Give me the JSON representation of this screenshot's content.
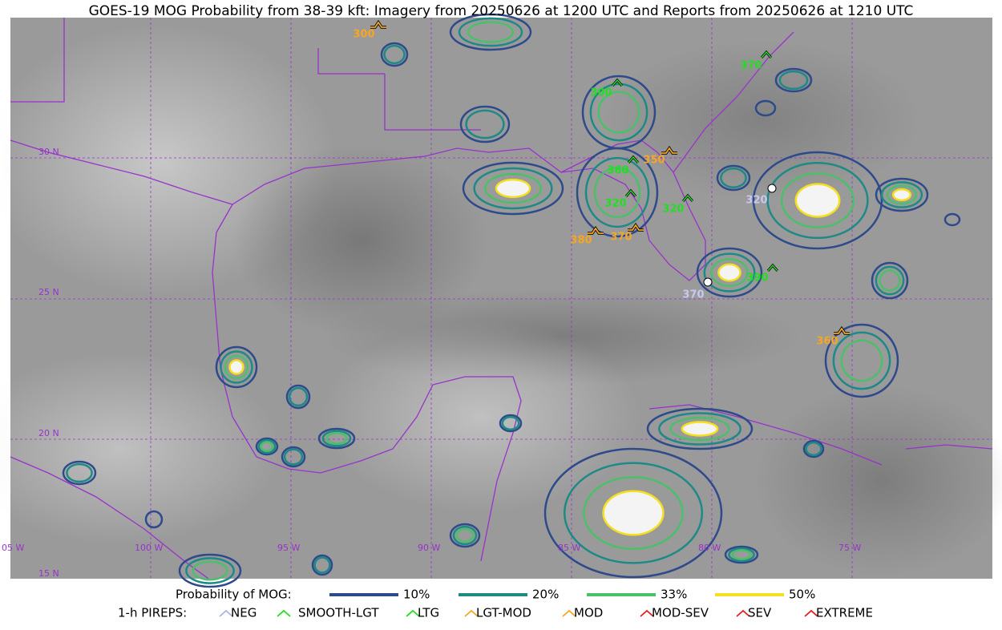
{
  "title": "GOES-19 MOG Probability from 38-39 kft: Imagery from 20250626 at 1200 UTC and Reports from 20250626 at 1210 UTC",
  "lat_labels": [
    "30 N",
    "25 N",
    "20 N",
    "15 N"
  ],
  "lon_labels": [
    "05 W",
    "100 W",
    "95 W",
    "90 W",
    "85 W",
    "80 W",
    "75 W"
  ],
  "pireps": [
    "300",
    "370",
    "300",
    "350",
    "360",
    "320",
    "320",
    "320",
    "380",
    "370",
    "390",
    "370",
    "360"
  ],
  "legend": {
    "probability_title": "Probability of MOG:",
    "probability_levels": [
      "10%",
      "20%",
      "33%",
      "50%"
    ],
    "pirep_title": "1-h PIREPS:",
    "pirep_types": [
      "NEG",
      "SMOOTH-LGT",
      "LTG",
      "LGT-MOD",
      "MOD",
      "MOD-SEV",
      "SEV",
      "EXTREME"
    ]
  }
}
